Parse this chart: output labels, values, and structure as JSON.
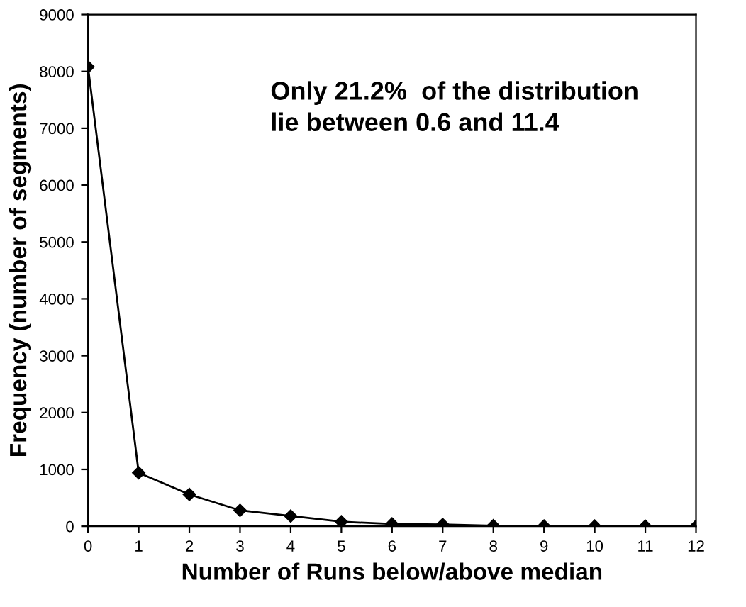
{
  "chart_data": {
    "type": "line",
    "xlabel": "Number of Runs below/above median",
    "ylabel": "Frequency (number of segments)",
    "x": [
      0,
      1,
      2,
      3,
      4,
      5,
      6,
      7,
      8,
      9,
      10,
      11,
      12
    ],
    "series": [
      {
        "color": "#000000",
        "values": [
          8080,
          940,
          560,
          280,
          180,
          80,
          40,
          30,
          10,
          5,
          3,
          2,
          1
        ]
      }
    ],
    "xlim": [
      0,
      12
    ],
    "xticks": [
      0,
      1,
      2,
      3,
      4,
      5,
      6,
      7,
      8,
      9,
      10,
      11,
      12
    ],
    "ylim": [
      0,
      9000
    ],
    "yticks": [
      0,
      1000,
      2000,
      3000,
      4000,
      5000,
      6000,
      7000,
      8000,
      9000
    ],
    "annotations": [
      "Only 21.2%  of the distribution\nlie between 0.6 and 11.4"
    ],
    "marker": "diamond",
    "line_style": "solid",
    "grid": false,
    "legend": false
  }
}
